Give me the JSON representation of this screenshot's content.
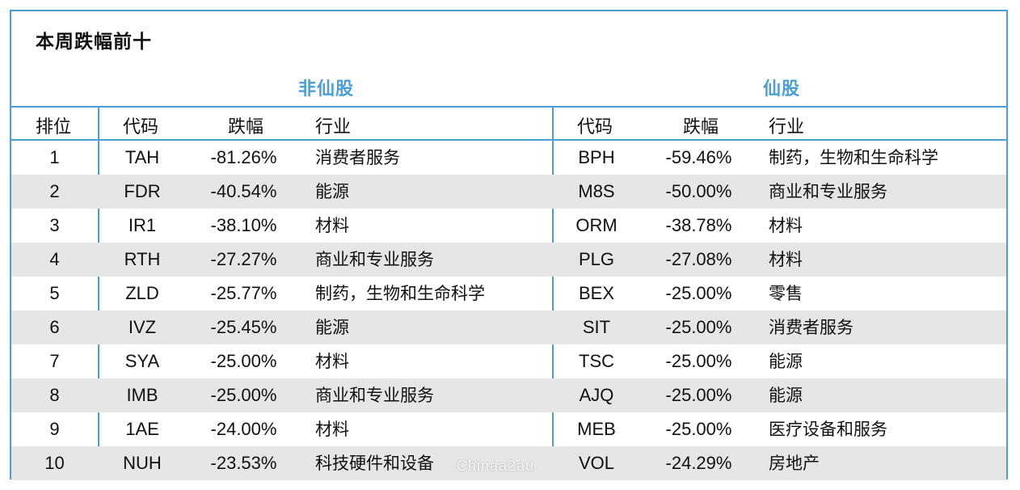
{
  "title": "本周跌幅前十",
  "groups": {
    "left": "非仙股",
    "right": "仙股"
  },
  "headers": {
    "rank": "排位",
    "left_code": "代码",
    "left_pct": "跌幅",
    "left_industry": "行业",
    "right_code": "代码",
    "right_pct": "跌幅",
    "right_industry": "行业"
  },
  "rows": [
    {
      "rank": "1",
      "l_code": "TAH",
      "l_pct": "-81.26%",
      "l_ind": "消费者服务",
      "r_code": "BPH",
      "r_pct": "-59.46%",
      "r_ind": "制药，生物和生命科学"
    },
    {
      "rank": "2",
      "l_code": "FDR",
      "l_pct": "-40.54%",
      "l_ind": "能源",
      "r_code": "M8S",
      "r_pct": "-50.00%",
      "r_ind": "商业和专业服务"
    },
    {
      "rank": "3",
      "l_code": "IR1",
      "l_pct": "-38.10%",
      "l_ind": "材料",
      "r_code": "ORM",
      "r_pct": "-38.78%",
      "r_ind": "材料"
    },
    {
      "rank": "4",
      "l_code": "RTH",
      "l_pct": "-27.27%",
      "l_ind": "商业和专业服务",
      "r_code": "PLG",
      "r_pct": "-27.08%",
      "r_ind": "材料"
    },
    {
      "rank": "5",
      "l_code": "ZLD",
      "l_pct": "-25.77%",
      "l_ind": "制药，生物和生命科学",
      "r_code": "BEX",
      "r_pct": "-25.00%",
      "r_ind": "零售"
    },
    {
      "rank": "6",
      "l_code": "IVZ",
      "l_pct": "-25.45%",
      "l_ind": "能源",
      "r_code": "SIT",
      "r_pct": "-25.00%",
      "r_ind": "消费者服务"
    },
    {
      "rank": "7",
      "l_code": "SYA",
      "l_pct": "-25.00%",
      "l_ind": "材料",
      "r_code": "TSC",
      "r_pct": "-25.00%",
      "r_ind": "能源"
    },
    {
      "rank": "8",
      "l_code": "IMB",
      "l_pct": "-25.00%",
      "l_ind": "商业和专业服务",
      "r_code": "AJQ",
      "r_pct": "-25.00%",
      "r_ind": "能源"
    },
    {
      "rank": "9",
      "l_code": "1AE",
      "l_pct": "-24.00%",
      "l_ind": "材料",
      "r_code": "MEB",
      "r_pct": "-25.00%",
      "r_ind": "医疗设备和服务"
    },
    {
      "rank": "10",
      "l_code": "NUH",
      "l_pct": "-23.53%",
      "l_ind": "科技硬件和设备",
      "r_code": "VOL",
      "r_pct": "-24.29%",
      "r_ind": "房地产"
    }
  ],
  "watermark": "Chinaa2au",
  "colors": {
    "accent": "#4a9fd8",
    "row_shade": "#e6e6e6"
  }
}
